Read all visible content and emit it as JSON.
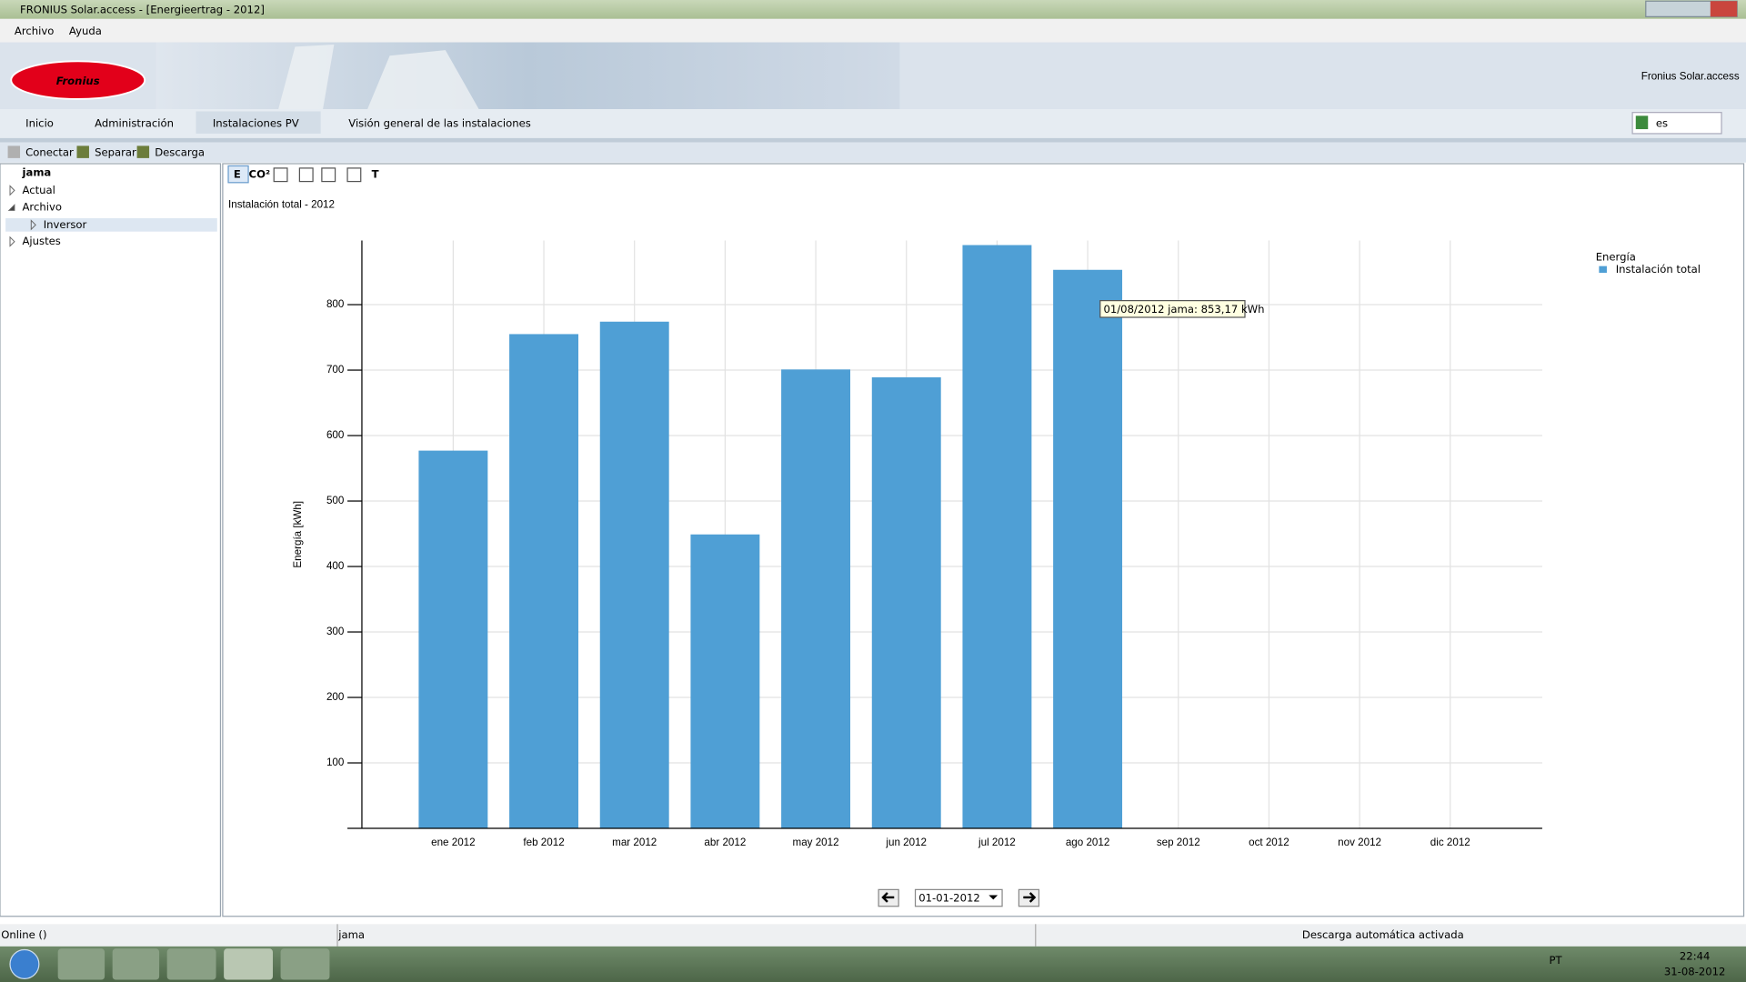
{
  "window": {
    "title": "FRONIUS Solar.access - [Energieertrag - 2012]"
  },
  "menu": [
    "Archivo",
    "Ayuda"
  ],
  "header": {
    "logo": "Fronius",
    "product": "Fronius Solar.access"
  },
  "tabs": [
    "Inicio",
    "Administración",
    "Instalaciones PV",
    "Visión general de las instalaciones"
  ],
  "language": "es",
  "toolbar": [
    "Conectar",
    "Separar",
    "Descarga"
  ],
  "tree": [
    "jama",
    "Actual",
    "Archivo",
    "Inversor",
    "Ajustes"
  ],
  "chart_toolbar": [
    "E",
    "CO²",
    "T"
  ],
  "date_selector": "01-01-2012",
  "status": [
    "Online ()",
    "jama",
    "Descarga automática activada"
  ],
  "taskbar": {
    "language": "PT",
    "time": "22:44",
    "date": "31-08-2012"
  },
  "chart_data": {
    "type": "bar",
    "title": "Instalación total - 2012",
    "y_label": "Energía [kWh]",
    "legend_title": "Energía",
    "categories": [
      "ene 2012",
      "feb 2012",
      "mar 2012",
      "abr 2012",
      "may 2012",
      "jun 2012",
      "jul 2012",
      "ago 2012",
      "sep 2012",
      "oct 2012",
      "nov 2012",
      "dic 2012"
    ],
    "series": [
      {
        "name": "Instalación total",
        "color": "#4f9fd5",
        "values": [
          577,
          755,
          774,
          449,
          701,
          689,
          891,
          853.17,
          null,
          null,
          null,
          null
        ]
      }
    ],
    "ylim": [
      0,
      898
    ],
    "yticks": [
      100,
      200,
      300,
      400,
      500,
      600,
      700,
      800
    ],
    "grid": true,
    "legend": "top-right",
    "tooltip": "01/08/2012 jama: 853,17 kWh"
  }
}
